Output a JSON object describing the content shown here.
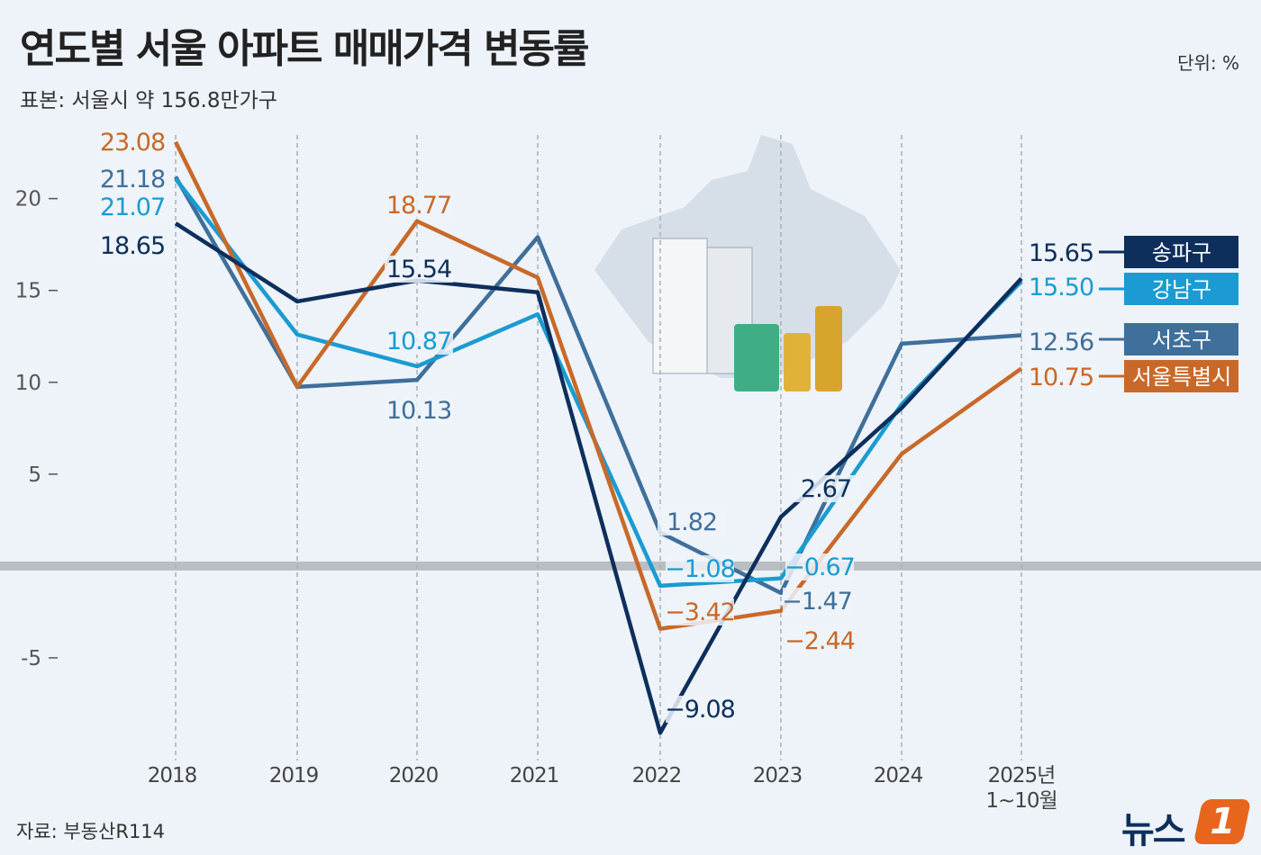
{
  "chart_data": {
    "type": "line",
    "title": "연도별 서울 아파트 매매가격 변동률",
    "subtitle": "표본: 서울시 약 156.8만가구",
    "unit": "단위: %",
    "source": "자료: 부동산R114",
    "logo": {
      "text": "뉴스",
      "mark": "1"
    },
    "categories": [
      "2018",
      "2019",
      "2020",
      "2021",
      "2022",
      "2023",
      "2024",
      "2025년\n1~10월"
    ],
    "series": [
      {
        "name": "송파구",
        "color": "#0e2f5c",
        "values": [
          18.65,
          14.4,
          15.54,
          14.9,
          -9.08,
          2.67,
          8.6,
          15.65
        ],
        "value_labels": [
          "18.65",
          null,
          "15.54",
          null,
          "−9.08",
          "2.67",
          null,
          "15.65"
        ]
      },
      {
        "name": "강남구",
        "color": "#1b9bd1",
        "values": [
          21.07,
          12.6,
          10.87,
          13.7,
          -1.08,
          -0.67,
          8.8,
          15.5
        ],
        "value_labels": [
          "21.07",
          null,
          "10.87",
          null,
          "−1.08",
          "−0.67",
          null,
          "15.50"
        ]
      },
      {
        "name": "서초구",
        "color": "#3f6f9b",
        "values": [
          21.18,
          9.75,
          10.13,
          17.9,
          1.82,
          -1.47,
          12.1,
          12.56
        ],
        "value_labels": [
          "21.18",
          null,
          "10.13",
          null,
          "1.82",
          "−1.47",
          null,
          "12.56"
        ]
      },
      {
        "name": "서울특별시",
        "color": "#c8692a",
        "values": [
          23.08,
          9.75,
          18.77,
          15.7,
          -3.42,
          -2.44,
          6.1,
          10.75
        ],
        "value_labels": [
          "23.08",
          null,
          "18.77",
          null,
          "−3.42",
          "−2.44",
          null,
          "10.75"
        ]
      }
    ],
    "ylim": [
      -10,
      24
    ],
    "yticks": [
      -5,
      5,
      10,
      15,
      20
    ]
  }
}
